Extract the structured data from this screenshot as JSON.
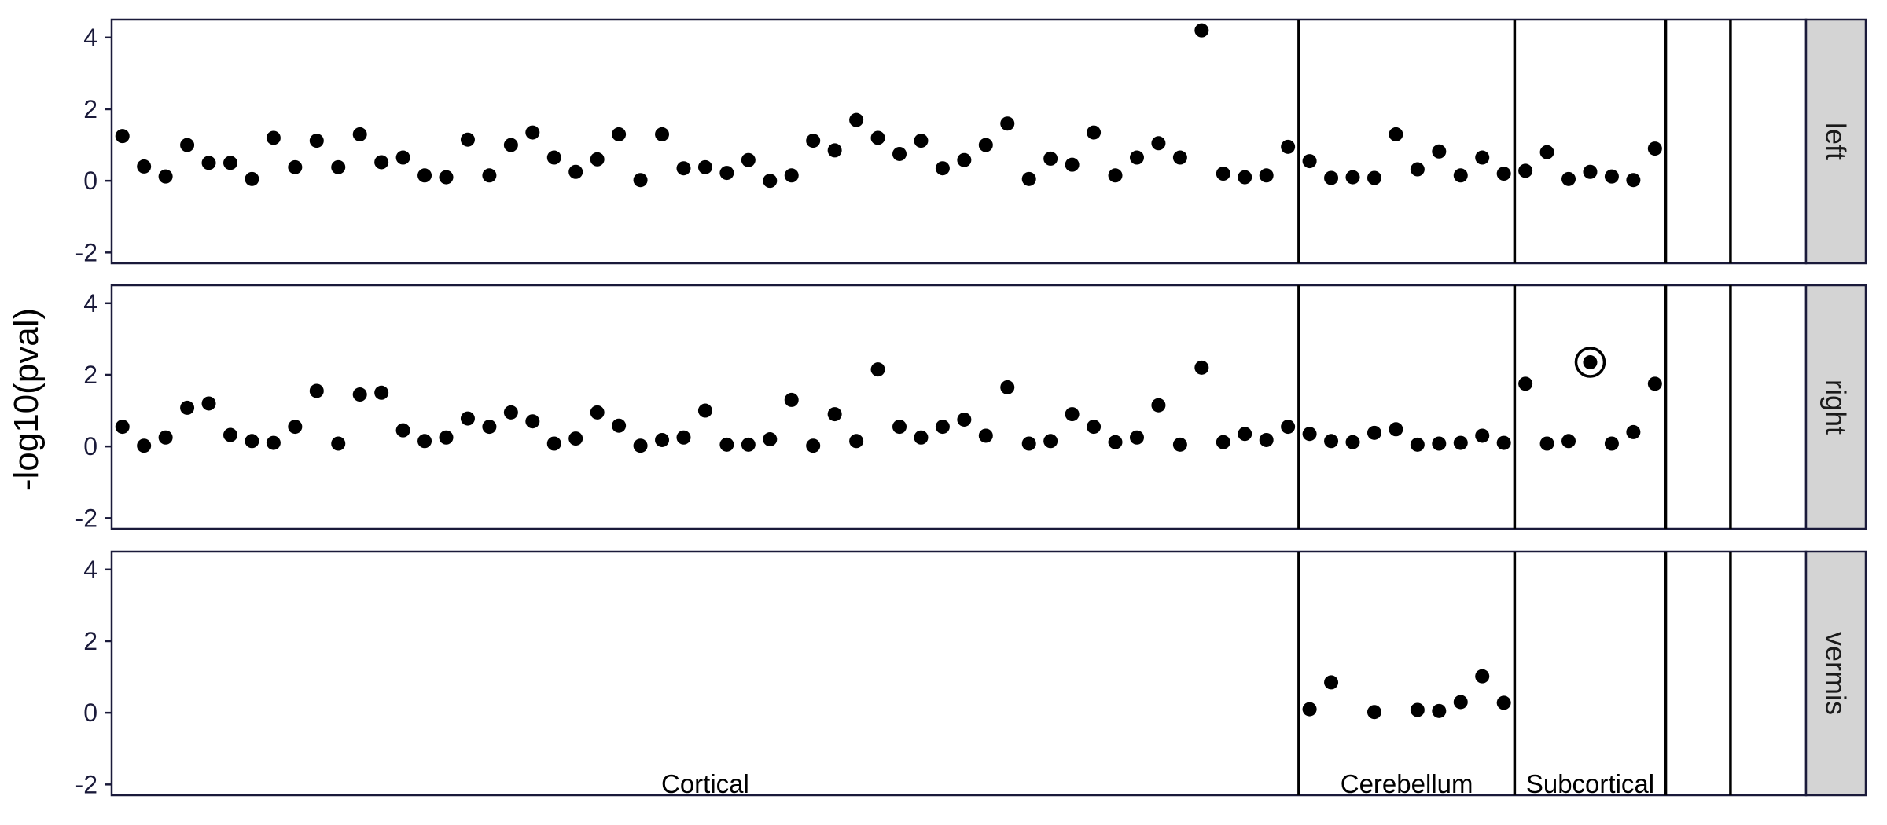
{
  "chart_data": {
    "type": "scatter",
    "ylabel": "-log10(pval)",
    "ylim": [
      -2.3,
      4.5
    ],
    "yticks": [
      -2,
      0,
      2,
      4
    ],
    "ytick_labels": [
      "-2",
      "0",
      "2",
      "4"
    ],
    "x_range": [
      0.5,
      79
    ],
    "groups": [
      {
        "name": "Cortical",
        "start": 1,
        "end": 55
      },
      {
        "name": "Cerebellum",
        "start": 56,
        "end": 65
      },
      {
        "name": "Subcortical",
        "start": 66,
        "end": 72
      }
    ],
    "panels": [
      {
        "facet": "left",
        "x": [
          1,
          2,
          3,
          4,
          5,
          6,
          7,
          8,
          9,
          10,
          11,
          12,
          13,
          14,
          15,
          16,
          17,
          18,
          19,
          20,
          21,
          22,
          23,
          24,
          25,
          26,
          27,
          28,
          29,
          30,
          31,
          32,
          33,
          34,
          35,
          36,
          37,
          38,
          39,
          40,
          41,
          42,
          43,
          44,
          45,
          46,
          47,
          48,
          49,
          50,
          51,
          52,
          53,
          54,
          55,
          56,
          57,
          58,
          59,
          60,
          61,
          62,
          63,
          64,
          65,
          66,
          67,
          68,
          69,
          70,
          71,
          72
        ],
        "y": [
          1.25,
          0.4,
          0.12,
          1.0,
          0.5,
          0.5,
          0.05,
          1.2,
          0.38,
          1.12,
          0.38,
          1.3,
          0.52,
          0.65,
          0.15,
          0.1,
          1.15,
          0.15,
          1.0,
          1.35,
          0.65,
          0.25,
          0.6,
          1.3,
          0.02,
          1.3,
          0.35,
          0.38,
          0.22,
          0.58,
          0.0,
          0.15,
          1.12,
          0.85,
          1.7,
          1.2,
          0.75,
          1.12,
          0.35,
          0.58,
          1.0,
          1.6,
          0.05,
          0.62,
          0.45,
          1.35,
          0.15,
          0.65,
          1.05,
          0.65,
          4.2,
          0.2,
          0.1,
          0.15,
          0.95,
          0.55,
          0.08,
          0.1,
          0.08,
          1.3,
          0.32,
          0.82,
          0.15,
          0.65,
          0.2,
          0.28,
          0.8,
          0.05,
          0.25,
          0.12,
          0.02,
          0.9
        ]
      },
      {
        "facet": "right",
        "x": [
          1,
          2,
          3,
          4,
          5,
          6,
          7,
          8,
          9,
          10,
          11,
          12,
          13,
          14,
          15,
          16,
          17,
          18,
          19,
          20,
          21,
          22,
          23,
          24,
          25,
          26,
          27,
          28,
          29,
          30,
          31,
          32,
          33,
          34,
          35,
          36,
          37,
          38,
          39,
          40,
          41,
          42,
          43,
          44,
          45,
          46,
          47,
          48,
          49,
          50,
          51,
          52,
          53,
          54,
          55,
          56,
          57,
          58,
          59,
          60,
          61,
          62,
          63,
          64,
          65,
          66,
          67,
          68,
          69,
          70,
          71,
          72
        ],
        "y": [
          0.55,
          0.02,
          0.25,
          1.08,
          1.2,
          0.32,
          0.15,
          0.1,
          0.55,
          1.55,
          0.08,
          1.45,
          1.5,
          0.45,
          0.15,
          0.25,
          0.78,
          0.55,
          0.95,
          0.7,
          0.08,
          0.22,
          0.95,
          0.58,
          0.02,
          0.18,
          0.25,
          1.0,
          0.05,
          0.05,
          0.2,
          1.3,
          0.02,
          0.9,
          0.15,
          2.15,
          0.55,
          0.25,
          0.55,
          0.75,
          0.3,
          1.65,
          0.08,
          0.15,
          0.9,
          0.55,
          0.12,
          0.25,
          1.15,
          0.05,
          2.2,
          0.12,
          0.35,
          0.18,
          0.55,
          0.35,
          0.15,
          0.12,
          0.38,
          0.48,
          0.05,
          0.08,
          0.1,
          0.3,
          0.1,
          1.75,
          0.08,
          0.15,
          2.35,
          0.08,
          0.4,
          1.75
        ],
        "highlight_x": 69
      },
      {
        "facet": "vermis",
        "x": [
          56,
          57,
          59,
          61,
          62,
          63,
          64,
          65
        ],
        "y": [
          0.1,
          0.85,
          0.02,
          0.08,
          0.05,
          0.3,
          1.02,
          0.28
        ]
      }
    ]
  }
}
